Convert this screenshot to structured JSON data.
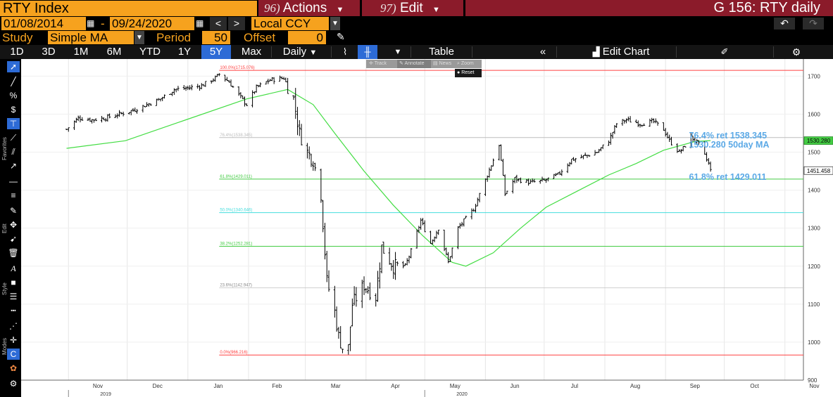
{
  "header": {
    "security": "RTY Index",
    "actions_num": "96)",
    "actions_label": "Actions",
    "edit_num": "97)",
    "edit_label": "Edit",
    "chart_name": "G 156: RTY daily"
  },
  "range": {
    "start_date": "01/08/2014",
    "dash": "-",
    "end_date": "09/24/2020",
    "currency": "Local CCY"
  },
  "study": {
    "study_label": "Study",
    "study_value": "Simple MA",
    "period_label": "Period",
    "period_value": "50",
    "offset_label": "Offset",
    "offset_value": "0"
  },
  "toolbar": {
    "periods": [
      "1D",
      "3D",
      "1M",
      "6M",
      "YTD",
      "1Y",
      "5Y",
      "Max"
    ],
    "selected_period": "5Y",
    "frequency": "Daily",
    "table_label": "Table",
    "edit_chart_label": "Edit Chart"
  },
  "mini_toolbar": {
    "track": "Track",
    "annotate": "Annotate",
    "news": "News",
    "zoom": "Zoom",
    "reset": "Reset"
  },
  "sidebar": {
    "favorites": "Favorites",
    "edit": "Edit",
    "style": "Style",
    "modes": "Modes"
  },
  "colors": {
    "accent_orange": "#f6a21e",
    "menu_red": "#8b1b2a",
    "selected_blue": "#2d6bd6",
    "price": "#000000",
    "ma": "#44dd44",
    "fib_red": "#ff4040",
    "fib_green": "#44cc44",
    "fib_cyan": "#44dddd",
    "fib_gray": "#bdbdbd",
    "annotation_blue": "#5ba9e6"
  },
  "chart_data": {
    "type": "ohlc",
    "ylim": [
      900,
      1745
    ],
    "yticks": [
      900,
      1000,
      1100,
      1200,
      1300,
      1400,
      1500,
      1600,
      1700
    ],
    "month_labels": [
      "Nov",
      "Dec",
      "Jan",
      "Feb",
      "Mar",
      "Apr",
      "May",
      "Jun",
      "Jul",
      "Aug",
      "Sep",
      "Oct",
      "Nov"
    ],
    "year_labels": [
      {
        "label": "2019",
        "month_index": 0
      },
      {
        "label": "2020",
        "month_index": 6
      }
    ],
    "price_series": {
      "name": "RTY Index",
      "points": [
        [
          "2019-10-31",
          1560
        ],
        [
          "2019-11-06",
          1590
        ],
        [
          "2019-11-13",
          1585
        ],
        [
          "2019-11-20",
          1590
        ],
        [
          "2019-11-27",
          1600
        ],
        [
          "2019-12-04",
          1610
        ],
        [
          "2019-12-11",
          1625
        ],
        [
          "2019-12-18",
          1640
        ],
        [
          "2019-12-25",
          1665
        ],
        [
          "2019-12-31",
          1668
        ],
        [
          "2020-01-08",
          1675
        ],
        [
          "2020-01-15",
          1695
        ],
        [
          "2020-01-17",
          1705
        ],
        [
          "2020-01-22",
          1685
        ],
        [
          "2020-01-27",
          1650
        ],
        [
          "2020-01-31",
          1625
        ],
        [
          "2020-02-05",
          1670
        ],
        [
          "2020-02-12",
          1690
        ],
        [
          "2020-02-19",
          1695
        ],
        [
          "2020-02-24",
          1640
        ],
        [
          "2020-02-27",
          1550
        ],
        [
          "2020-03-02",
          1500
        ],
        [
          "2020-03-05",
          1480
        ],
        [
          "2020-03-09",
          1390
        ],
        [
          "2020-03-12",
          1160
        ],
        [
          "2020-03-16",
          1080
        ],
        [
          "2020-03-18",
          1015
        ],
        [
          "2020-03-20",
          985
        ],
        [
          "2020-03-23",
          985
        ],
        [
          "2020-03-25",
          1100
        ],
        [
          "2020-03-31",
          1150
        ],
        [
          "2020-04-06",
          1120
        ],
        [
          "2020-04-09",
          1250
        ],
        [
          "2020-04-15",
          1200
        ],
        [
          "2020-04-21",
          1200
        ],
        [
          "2020-04-24",
          1240
        ],
        [
          "2020-04-29",
          1320
        ],
        [
          "2020-05-04",
          1260
        ],
        [
          "2020-05-08",
          1300
        ],
        [
          "2020-05-13",
          1210
        ],
        [
          "2020-05-18",
          1300
        ],
        [
          "2020-05-26",
          1350
        ],
        [
          "2020-06-02",
          1440
        ],
        [
          "2020-06-08",
          1520
        ],
        [
          "2020-06-11",
          1390
        ],
        [
          "2020-06-16",
          1430
        ],
        [
          "2020-06-24",
          1420
        ],
        [
          "2020-07-01",
          1425
        ],
        [
          "2020-07-08",
          1440
        ],
        [
          "2020-07-15",
          1480
        ],
        [
          "2020-07-22",
          1490
        ],
        [
          "2020-07-28",
          1500
        ],
        [
          "2020-08-03",
          1530
        ],
        [
          "2020-08-07",
          1575
        ],
        [
          "2020-08-12",
          1585
        ],
        [
          "2020-08-19",
          1575
        ],
        [
          "2020-08-26",
          1580
        ],
        [
          "2020-08-31",
          1560
        ],
        [
          "2020-09-03",
          1530
        ],
        [
          "2020-09-08",
          1500
        ],
        [
          "2020-09-10",
          1510
        ],
        [
          "2020-09-14",
          1540
        ],
        [
          "2020-09-18",
          1520
        ],
        [
          "2020-09-23",
          1470
        ],
        [
          "2020-09-24",
          1451.458
        ]
      ]
    },
    "ma_series": {
      "name": "50day MA",
      "points": [
        [
          "2019-10-31",
          1510
        ],
        [
          "2019-11-30",
          1530
        ],
        [
          "2019-12-31",
          1585
        ],
        [
          "2020-01-31",
          1640
        ],
        [
          "2020-02-21",
          1665
        ],
        [
          "2020-03-05",
          1625
        ],
        [
          "2020-03-16",
          1550
        ],
        [
          "2020-03-31",
          1450
        ],
        [
          "2020-04-15",
          1360
        ],
        [
          "2020-04-30",
          1280
        ],
        [
          "2020-05-15",
          1210
        ],
        [
          "2020-05-22",
          1200
        ],
        [
          "2020-06-05",
          1235
        ],
        [
          "2020-06-19",
          1300
        ],
        [
          "2020-07-02",
          1355
        ],
        [
          "2020-07-17",
          1395
        ],
        [
          "2020-08-03",
          1440
        ],
        [
          "2020-08-17",
          1470
        ],
        [
          "2020-08-31",
          1505
        ],
        [
          "2020-09-16",
          1528
        ],
        [
          "2020-09-24",
          1530.28
        ]
      ]
    },
    "fib_levels": [
      {
        "label": "100.0%(1715.076)",
        "value": 1715.076,
        "color": "#ff4040",
        "faint": false
      },
      {
        "label": "76.4%(1538.345)",
        "value": 1538.345,
        "color": "#bdbdbd",
        "faint": false
      },
      {
        "label": "61.8%(1429.011)",
        "value": 1429.011,
        "color": "#44cc44",
        "faint": false
      },
      {
        "label": "50.0%(1340.646)",
        "value": 1340.646,
        "color": "#44dddd",
        "faint": false
      },
      {
        "label": "38.2%(1252.281)",
        "value": 1252.281,
        "color": "#44cc44",
        "faint": false
      },
      {
        "label": "23.6%(1142.947)",
        "value": 1142.947,
        "color": "#bdbdbd",
        "faint": true
      },
      {
        "label": "0.0%(966.216)",
        "value": 966.216,
        "color": "#ff4040",
        "faint": false
      }
    ],
    "annotations": [
      {
        "text": "76.4% ret 1538.345",
        "value": 1538.345
      },
      {
        "text": "1530.280 50day MA",
        "value": 1530.28
      },
      {
        "text": "61.8% ret 1429.011",
        "value": 1429.011
      }
    ],
    "price_tags": [
      {
        "text": "1530.280",
        "value": 1530.28,
        "kind": "ma"
      },
      {
        "text": "1451.458",
        "value": 1451.458,
        "kind": "last"
      }
    ]
  }
}
